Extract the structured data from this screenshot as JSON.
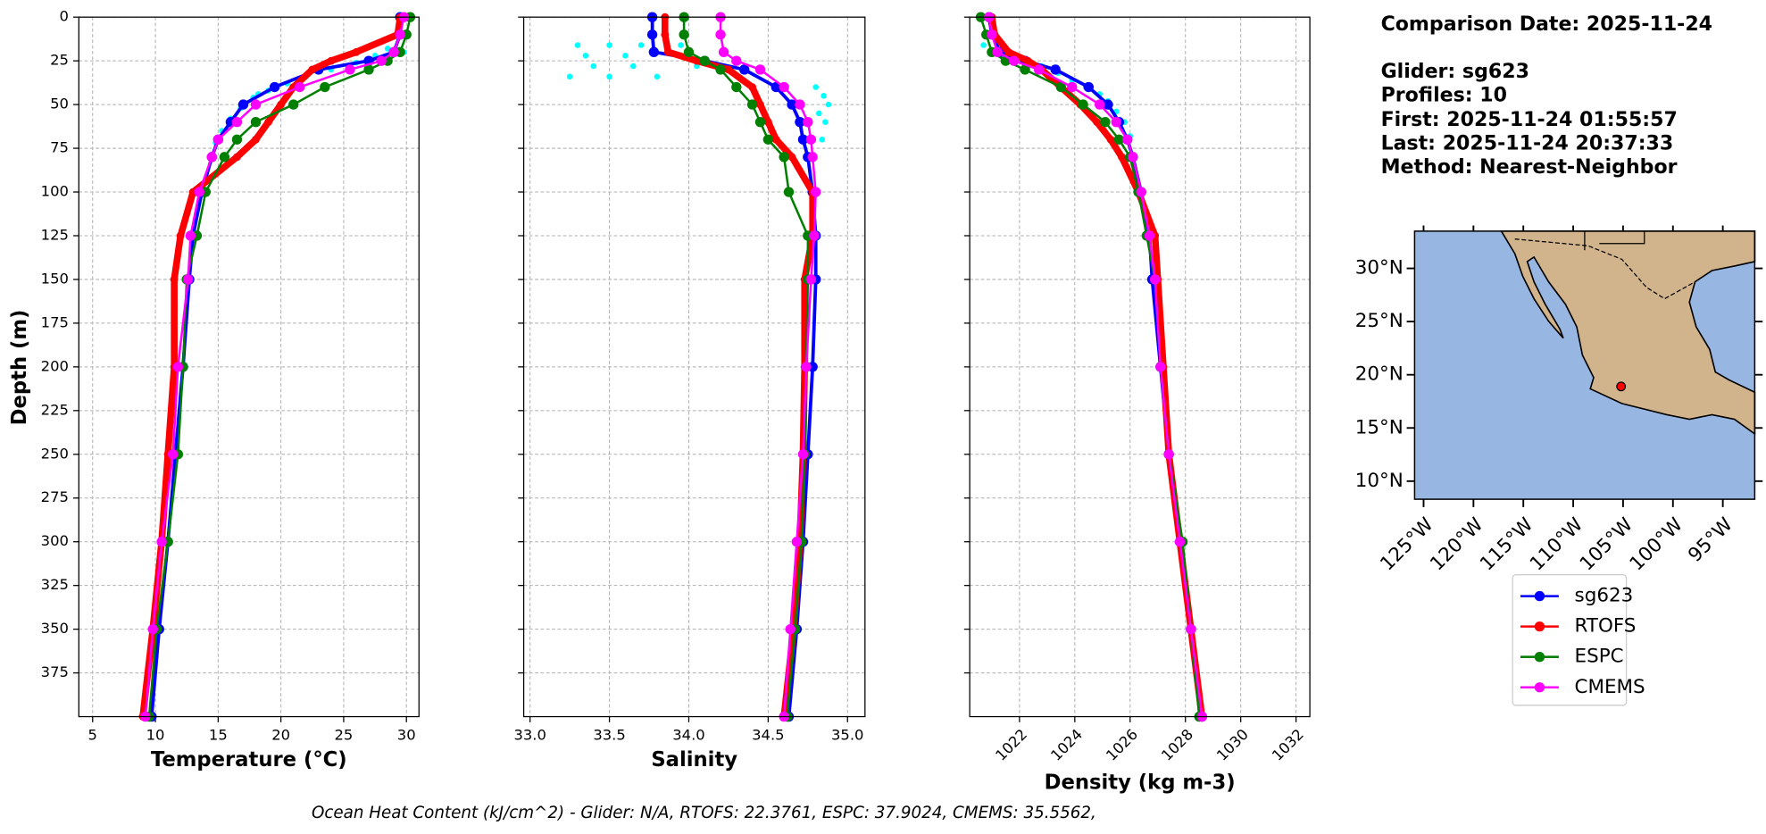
{
  "chart_data": [
    {
      "type": "profile",
      "xlabel": "Temperature (°C)",
      "ylabel": "Depth (m)",
      "xlim": [
        3.9,
        31
      ],
      "xticks": [
        5,
        10,
        15,
        20,
        25,
        30
      ],
      "ylim": [
        0,
        400
      ],
      "y_inverted": true,
      "yticks": [
        0,
        25,
        50,
        75,
        100,
        125,
        150,
        175,
        200,
        225,
        250,
        275,
        300,
        325,
        350,
        375
      ],
      "grid": true,
      "depth": [
        0,
        10,
        20,
        25,
        30,
        40,
        50,
        60,
        70,
        80,
        100,
        125,
        150,
        200,
        250,
        300,
        350,
        400
      ],
      "raw": {
        "color": "#00ffff",
        "depth": [
          18,
          22,
          26,
          30,
          34,
          38,
          42,
          46,
          52,
          58,
          65,
          72,
          20,
          28,
          36,
          44
        ],
        "values": [
          28.5,
          27.5,
          26,
          24,
          22,
          20.5,
          19,
          17.8,
          16.8,
          16,
          15.3,
          14.8,
          29.8,
          25.5,
          21.5,
          18.2
        ]
      },
      "series": [
        {
          "name": "sg623",
          "color": "#0000ff",
          "values": [
            29.5,
            29.5,
            29,
            27,
            23,
            19.5,
            17,
            16,
            15,
            14.5,
            13.7,
            13,
            12.7,
            12.2,
            11.6,
            11,
            10.3,
            9.7
          ]
        },
        {
          "name": "RTOFS",
          "color": "#ff0000",
          "values": [
            29.5,
            29.3,
            26,
            24,
            22.5,
            21,
            20,
            19,
            18,
            16.5,
            13,
            12,
            11.5,
            11.5,
            11,
            10.5,
            9.8,
            9
          ]
        },
        {
          "name": "ESPC",
          "color": "#008000",
          "values": [
            30.3,
            30,
            29.5,
            28.5,
            27,
            23.5,
            21,
            18,
            16.5,
            15.5,
            14,
            13.3,
            12.5,
            12.2,
            11.8,
            11,
            10.1,
            9.5
          ]
        },
        {
          "name": "CMEMS",
          "color": "#ff00ff",
          "values": [
            29.8,
            29.5,
            29,
            28,
            25.5,
            21.5,
            18,
            16.5,
            15,
            14.5,
            13.5,
            12.8,
            12.6,
            11.8,
            11.4,
            10.5,
            9.8,
            9.2
          ]
        }
      ]
    },
    {
      "type": "profile",
      "xlabel": "Salinity",
      "xlim": [
        32.96,
        35.11
      ],
      "xticks": [
        {
          "value": 33,
          "label": "33.0"
        },
        33.5,
        {
          "value": 34,
          "label": "34.0"
        },
        34.5,
        {
          "value": 35,
          "label": "35.0"
        }
      ],
      "ylim": [
        0,
        400
      ],
      "y_inverted": true,
      "grid": true,
      "depth": [
        0,
        10,
        20,
        25,
        30,
        40,
        50,
        60,
        70,
        80,
        100,
        125,
        150,
        200,
        250,
        300,
        350,
        400
      ],
      "raw": {
        "color": "#00ffff",
        "depth": [
          16,
          16,
          16,
          22,
          22,
          28,
          28,
          34,
          34,
          34,
          40,
          45,
          50,
          55,
          60,
          70,
          16,
          28
        ],
        "values": [
          33.3,
          33.5,
          33.7,
          33.35,
          33.6,
          33.4,
          33.65,
          33.25,
          33.5,
          33.8,
          34.8,
          34.85,
          34.88,
          34.82,
          34.86,
          34.84,
          33.95,
          34.05
        ]
      },
      "series": [
        {
          "name": "sg623",
          "color": "#0000ff",
          "values": [
            33.77,
            33.77,
            33.78,
            34.1,
            34.35,
            34.55,
            34.65,
            34.7,
            34.72,
            34.75,
            34.78,
            34.8,
            34.8,
            34.78,
            34.75,
            34.72,
            34.68,
            34.63
          ]
        },
        {
          "name": "RTOFS",
          "color": "#ff0000",
          "values": [
            33.85,
            33.85,
            33.87,
            34.05,
            34.25,
            34.4,
            34.45,
            34.5,
            34.55,
            34.65,
            34.78,
            34.78,
            34.73,
            34.73,
            34.72,
            34.7,
            34.66,
            34.6
          ]
        },
        {
          "name": "ESPC",
          "color": "#008000",
          "values": [
            33.97,
            33.97,
            34,
            34.1,
            34.2,
            34.3,
            34.4,
            34.45,
            34.5,
            34.6,
            34.63,
            34.75,
            34.75,
            34.74,
            34.73,
            34.71,
            34.67,
            34.62
          ]
        },
        {
          "name": "CMEMS",
          "color": "#ff00ff",
          "values": [
            34.2,
            34.2,
            34.22,
            34.3,
            34.45,
            34.6,
            34.7,
            34.75,
            34.77,
            34.78,
            34.8,
            34.79,
            34.77,
            34.74,
            34.72,
            34.68,
            34.64,
            34.6
          ]
        }
      ]
    },
    {
      "type": "profile",
      "xlabel": "Density (kg m-3)",
      "xlim": [
        1020.2,
        1032.5
      ],
      "xticks": [
        1022,
        1024,
        1026,
        1028,
        1030,
        1032
      ],
      "xtick_rotation": -45,
      "ylim": [
        0,
        400
      ],
      "y_inverted": true,
      "grid": true,
      "depth": [
        0,
        10,
        20,
        25,
        30,
        40,
        50,
        60,
        70,
        80,
        100,
        125,
        150,
        200,
        250,
        300,
        350,
        400
      ],
      "raw": {
        "color": "#00ffff",
        "depth": [
          16,
          20,
          24,
          28,
          32,
          36,
          40,
          44,
          48,
          54,
          60,
          68
        ],
        "values": [
          1020.7,
          1021.2,
          1022,
          1022.8,
          1023.4,
          1023.9,
          1024.4,
          1024.9,
          1025.2,
          1025.5,
          1025.8,
          1026
        ]
      },
      "series": [
        {
          "name": "sg623",
          "color": "#0000ff",
          "values": [
            1020.9,
            1021,
            1021.3,
            1022.2,
            1023.3,
            1024.5,
            1025.2,
            1025.6,
            1025.9,
            1026.1,
            1026.4,
            1026.7,
            1026.8,
            1027.1,
            1027.4,
            1027.8,
            1028.2,
            1028.6
          ]
        },
        {
          "name": "RTOFS",
          "color": "#ff0000",
          "values": [
            1021,
            1021.1,
            1021.6,
            1022.3,
            1022.8,
            1023.5,
            1024.2,
            1024.8,
            1025.3,
            1025.7,
            1026.3,
            1026.9,
            1027,
            1027.2,
            1027.4,
            1027.8,
            1028.2,
            1028.6
          ]
        },
        {
          "name": "ESPC",
          "color": "#008000",
          "values": [
            1020.6,
            1020.8,
            1021,
            1021.5,
            1022.2,
            1023.5,
            1024.3,
            1025.1,
            1025.6,
            1026,
            1026.3,
            1026.6,
            1026.9,
            1027.1,
            1027.4,
            1027.9,
            1028.2,
            1028.5
          ]
        },
        {
          "name": "CMEMS",
          "color": "#ff00ff",
          "values": [
            1020.9,
            1021,
            1021.2,
            1021.8,
            1022.7,
            1023.9,
            1024.9,
            1025.5,
            1025.9,
            1026.1,
            1026.4,
            1026.7,
            1026.9,
            1027.1,
            1027.4,
            1027.8,
            1028.2,
            1028.6
          ]
        }
      ]
    },
    {
      "type": "map",
      "xlim": [
        -125.9,
        -91.8
      ],
      "ylim": [
        8.3,
        33.5
      ],
      "xticks": [
        {
          "value": -125,
          "label": "125°W"
        },
        {
          "value": -120,
          "label": "120°W"
        },
        {
          "value": -115,
          "label": "115°W"
        },
        {
          "value": -110,
          "label": "110°W"
        },
        {
          "value": -105,
          "label": "105°W"
        },
        {
          "value": -100,
          "label": "100°W"
        },
        {
          "value": -95,
          "label": "95°W"
        }
      ],
      "yticks": [
        {
          "value": 10,
          "label": "10°N"
        },
        {
          "value": 15,
          "label": "15°N"
        },
        {
          "value": 20,
          "label": "20°N"
        },
        {
          "value": 25,
          "label": "25°N"
        },
        {
          "value": 30,
          "label": "30°N"
        }
      ],
      "marker": {
        "lon": -105.2,
        "lat": 18.9,
        "color": "#ff0000"
      }
    }
  ],
  "info": [
    "Comparison Date: 2025-11-24",
    "Glider: sg623",
    "Profiles: 10",
    "First: 2025-11-24 01:55:57",
    "Last: 2025-11-24 20:37:33",
    "Method: Nearest-Neighbor"
  ],
  "footer": "Ocean Heat Content (kJ/cm^2) - Glider: N/A,  RTOFS: 22.3761,  ESPC: 37.9024,  CMEMS: 35.5562,"
}
